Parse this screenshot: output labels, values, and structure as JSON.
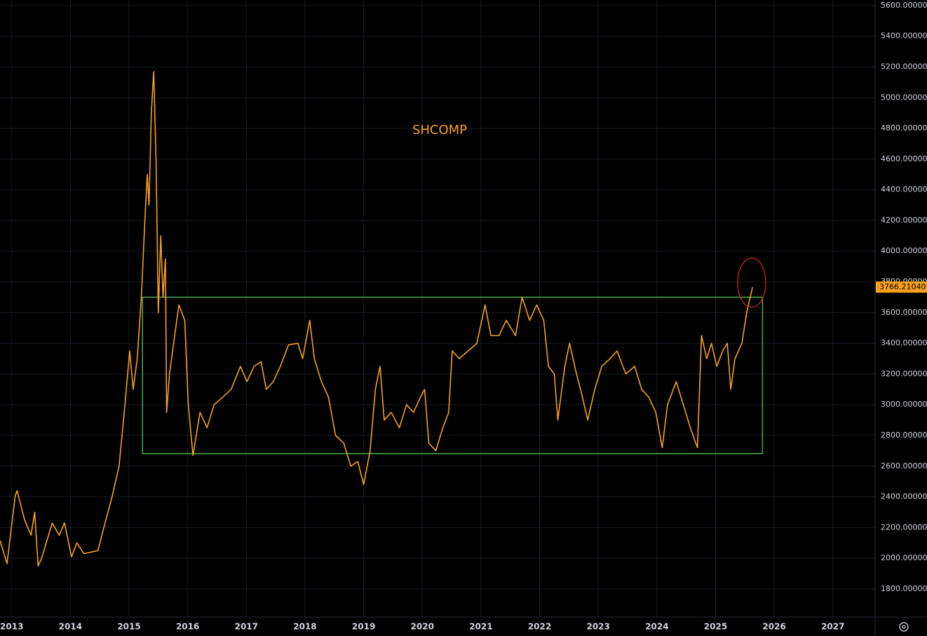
{
  "chart_data": {
    "type": "line",
    "title": "SHCOMP",
    "color": "#f7a01d",
    "x": [
      2012.8,
      2012.92,
      2013.06,
      2013.09,
      2013.22,
      2013.33,
      2013.39,
      2013.45,
      2013.51,
      2013.69,
      2013.81,
      2013.9,
      2014.02,
      2014.11,
      2014.23,
      2014.47,
      2014.57,
      2014.71,
      2014.83,
      2014.93,
      2015.01,
      2015.07,
      2015.14,
      2015.21,
      2015.27,
      2015.31,
      2015.34,
      2015.38,
      2015.42,
      2015.46,
      2015.5,
      2015.54,
      2015.58,
      2015.62,
      2015.64,
      2015.69,
      2015.76,
      2015.85,
      2015.95,
      2016.01,
      2016.09,
      2016.21,
      2016.33,
      2016.45,
      2016.6,
      2016.74,
      2016.9,
      2017.01,
      2017.13,
      2017.25,
      2017.34,
      2017.46,
      2017.58,
      2017.72,
      2017.88,
      2017.96,
      2018.08,
      2018.16,
      2018.28,
      2018.4,
      2018.52,
      2018.66,
      2018.78,
      2018.9,
      2019.0,
      2019.11,
      2019.2,
      2019.28,
      2019.35,
      2019.47,
      2019.61,
      2019.73,
      2019.85,
      2019.97,
      2020.04,
      2020.11,
      2020.23,
      2020.35,
      2020.45,
      2020.51,
      2020.63,
      2020.78,
      2020.93,
      2021.07,
      2021.17,
      2021.31,
      2021.43,
      2021.59,
      2021.7,
      2021.83,
      2021.95,
      2022.07,
      2022.15,
      2022.25,
      2022.31,
      2022.43,
      2022.51,
      2022.63,
      2022.73,
      2022.82,
      2022.94,
      2023.06,
      2023.2,
      2023.32,
      2023.47,
      2023.62,
      2023.74,
      2023.86,
      2023.98,
      2024.09,
      2024.18,
      2024.33,
      2024.45,
      2024.57,
      2024.69,
      2024.76,
      2024.85,
      2024.93,
      2025.02,
      2025.12,
      2025.2,
      2025.26,
      2025.33,
      2025.45,
      2025.53,
      2025.63
    ],
    "values": [
      2116,
      1965,
      2407,
      2440,
      2250,
      2150,
      2300,
      1950,
      2000,
      2230,
      2150,
      2230,
      2010,
      2100,
      2030,
      2050,
      2200,
      2400,
      2600,
      3000,
      3350,
      3100,
      3300,
      3700,
      4200,
      4500,
      4300,
      4900,
      5170,
      4600,
      3600,
      4100,
      3700,
      3950,
      2950,
      3200,
      3400,
      3650,
      3550,
      3000,
      2670,
      2950,
      2850,
      3000,
      3050,
      3100,
      3250,
      3150,
      3250,
      3280,
      3100,
      3150,
      3250,
      3390,
      3400,
      3300,
      3550,
      3300,
      3150,
      3050,
      2800,
      2750,
      2600,
      2630,
      2480,
      2700,
      3100,
      3250,
      2900,
      2950,
      2850,
      3000,
      2950,
      3050,
      3100,
      2750,
      2700,
      2850,
      2950,
      3350,
      3300,
      3350,
      3400,
      3650,
      3450,
      3450,
      3550,
      3450,
      3700,
      3550,
      3650,
      3550,
      3250,
      3200,
      2900,
      3250,
      3400,
      3200,
      3050,
      2900,
      3100,
      3250,
      3300,
      3350,
      3200,
      3250,
      3100,
      3050,
      2950,
      2720,
      3000,
      3150,
      3000,
      2850,
      2720,
      3450,
      3300,
      3400,
      3250,
      3350,
      3400,
      3100,
      3300,
      3400,
      3600,
      3766.2104
    ],
    "xlim": [
      2012.8,
      2027.72
    ],
    "ylim": [
      1617,
      5636
    ],
    "xticks": [
      2013,
      2014,
      2015,
      2016,
      2017,
      2018,
      2019,
      2020,
      2021,
      2022,
      2023,
      2024,
      2025,
      2026,
      2027
    ],
    "yticks": [
      {
        "value": 1800,
        "label": "1800.00000"
      },
      {
        "value": 2000,
        "label": "2000.00000"
      },
      {
        "value": 2200,
        "label": "2200.00000"
      },
      {
        "value": 2400,
        "label": "2400.00000"
      },
      {
        "value": 2600,
        "label": "2600.00000"
      },
      {
        "value": 2800,
        "label": "2800.00000"
      },
      {
        "value": 3000,
        "label": "3000.00000"
      },
      {
        "value": 3200,
        "label": "3200.00000"
      },
      {
        "value": 3400,
        "label": "3400.00000"
      },
      {
        "value": 3600,
        "label": "3600.00000"
      },
      {
        "value": 3800,
        "label": "3800.00000"
      },
      {
        "value": 4000,
        "label": "4000.00000"
      },
      {
        "value": 4200,
        "label": "4200.00000"
      },
      {
        "value": 4400,
        "label": "4400.00000"
      },
      {
        "value": 4600,
        "label": "4600.00000"
      },
      {
        "value": 4800,
        "label": "4800.00000"
      },
      {
        "value": 5000,
        "label": "5000.00000"
      },
      {
        "value": 5200,
        "label": "5200.00000"
      },
      {
        "value": 5400,
        "label": "5400.00000"
      },
      {
        "value": 5600,
        "label": "5600.00000"
      }
    ],
    "grid": true,
    "last_label": {
      "value": 3766.2104,
      "label": "3766.21040"
    },
    "range_box": {
      "x": [
        2015.23,
        2025.8
      ],
      "y": [
        2682,
        3700
      ],
      "color": "#4caf50"
    }
  }
}
